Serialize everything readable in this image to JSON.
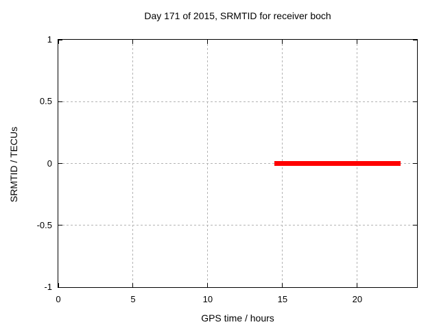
{
  "chart_data": {
    "type": "line",
    "title": "Day 171 of 2015, SRMTID for receiver boch",
    "xlabel": "GPS time / hours",
    "ylabel": "SRMTID / TECUs",
    "xlim": [
      0,
      24
    ],
    "ylim": [
      -1,
      1
    ],
    "xticks": [
      0,
      5,
      10,
      15,
      20
    ],
    "yticks": [
      -1,
      -0.5,
      0,
      0.5,
      1
    ],
    "xtick_labels": [
      "0",
      "5",
      "10",
      "15",
      "20"
    ],
    "ytick_labels": [
      "-1",
      "-0.5",
      "0",
      "0.5",
      "1"
    ],
    "grid": true,
    "grid_style": "dashed",
    "legend_position": "none",
    "series": [
      {
        "name": "SRMTID",
        "color": "#ff0000",
        "style": "thick horizontal line",
        "x": [
          14.45,
          22.9
        ],
        "y": [
          0,
          0
        ]
      }
    ]
  },
  "colors": {
    "background": "#ffffff",
    "axis": "#000000",
    "grid": "#b3b3b3",
    "series": "#ff0000",
    "text": "#000000"
  }
}
